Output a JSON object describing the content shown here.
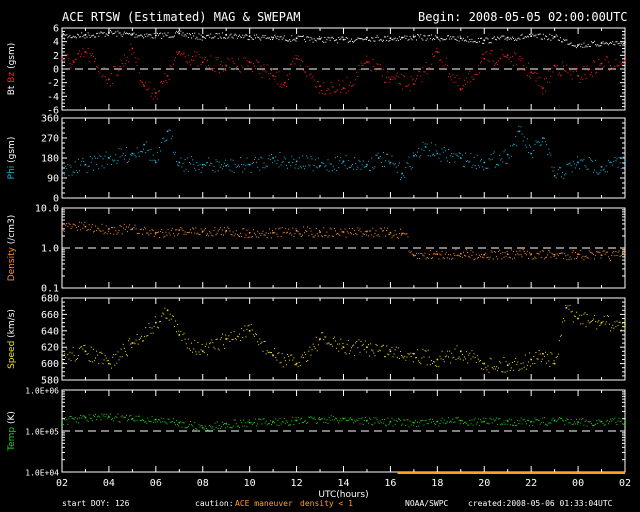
{
  "header": {
    "title": "ACE RTSW (Estimated) MAG & SWEPAM",
    "begin": "Begin: 2008-05-05 02:00:00UTC"
  },
  "footer": {
    "start_doy": "start DOY: 126",
    "caution_label": "caution:",
    "caution_maneuver": "ACE maneuver",
    "caution_density": "density < 1",
    "agency": "NOAA/SWPC",
    "created": "created:2008-05-06 01:33:04UTC"
  },
  "colors": {
    "bt": "#ffffff",
    "bz": "#ff2020",
    "phi": "#22b8e0",
    "density": "#ff9030",
    "speed": "#f0e020",
    "temp": "#20d020",
    "caution_maneuver": "#ffa020",
    "caution_density": "#ffa020"
  },
  "chart_data": [
    {
      "type": "scatter",
      "id": "mag",
      "ylabel": [
        {
          "text": "Bt",
          "color": "#ffffff"
        },
        {
          "text": " Bz",
          "color": "#ff2020"
        },
        {
          "text": " (gsm)",
          "color": "#ffffff"
        }
      ],
      "ylim": [
        -6,
        6
      ],
      "yticks": [
        "-6",
        "-4",
        "-2",
        "0",
        "2",
        "4",
        "6"
      ],
      "reference_line": 0,
      "series": [
        {
          "name": "Bt",
          "color": "#ffffff",
          "x": [
            2,
            3,
            4,
            5,
            6,
            7,
            8,
            9,
            10,
            11,
            12,
            13,
            14,
            15,
            16,
            16.5,
            17,
            18,
            19,
            20,
            21,
            22,
            23,
            24,
            25,
            26
          ],
          "y": [
            4.8,
            5.0,
            5.3,
            5.1,
            4.9,
            5.2,
            4.7,
            5.0,
            4.8,
            4.6,
            4.5,
            4.4,
            4.3,
            4.6,
            4.5,
            4.6,
            4.7,
            4.6,
            4.5,
            4.2,
            4.6,
            4.8,
            4.7,
            3.5,
            3.8,
            3.9
          ]
        },
        {
          "name": "Bz",
          "color": "#ff2020",
          "x": [
            2,
            2.5,
            3,
            4,
            5,
            5.5,
            6,
            6.5,
            7,
            8,
            9,
            10,
            11,
            11.5,
            12,
            13,
            14,
            15,
            16,
            17,
            18,
            19,
            20,
            21,
            22,
            22.5,
            23,
            24,
            25,
            26
          ],
          "y": [
            1.5,
            1.0,
            2.5,
            -1.5,
            3.0,
            -2.5,
            -3.5,
            -1.0,
            2.5,
            1.0,
            0.5,
            1.0,
            -1.0,
            -2.0,
            1.5,
            -2.5,
            -2.8,
            1.0,
            -1.5,
            -2.2,
            2.5,
            -3.0,
            1.5,
            2.0,
            -0.5,
            -2.8,
            0.5,
            -1.0,
            0.8,
            1.2
          ]
        }
      ]
    },
    {
      "type": "scatter",
      "id": "phi",
      "ylabel": [
        {
          "text": "Phi",
          "color": "#22b8e0"
        },
        {
          "text": " (gsm)",
          "color": "#ffffff"
        }
      ],
      "ylim": [
        0,
        360
      ],
      "yticks": [
        "0",
        "90",
        "180",
        "270",
        "360"
      ],
      "series": [
        {
          "name": "Phi",
          "color": "#22b8e0",
          "x": [
            2,
            3,
            4,
            5,
            5.5,
            6,
            6.5,
            7,
            8,
            9,
            10,
            11,
            12,
            13,
            14,
            15,
            15.5,
            16,
            16.5,
            17,
            17.5,
            18,
            19,
            20,
            21,
            21.5,
            22,
            22.5,
            23,
            24,
            25,
            26
          ],
          "y": [
            120,
            150,
            180,
            200,
            240,
            160,
            300,
            160,
            150,
            145,
            150,
            180,
            165,
            145,
            165,
            150,
            180,
            160,
            110,
            190,
            230,
            200,
            180,
            160,
            195,
            300,
            200,
            270,
            100,
            160,
            140,
            165
          ]
        }
      ]
    },
    {
      "type": "scatter",
      "id": "density",
      "ylabel": [
        {
          "text": "Density",
          "color": "#ff9030"
        },
        {
          "text": " (/cm3)",
          "color": "#ffffff"
        }
      ],
      "yscale": "log",
      "ylim": [
        0.1,
        10
      ],
      "yticks": [
        "0.1",
        "1.0",
        "10.0"
      ],
      "reference_line": 1,
      "series": [
        {
          "name": "Density",
          "color": "#ff9030",
          "x": [
            2,
            3,
            4,
            5,
            6,
            7,
            8,
            9,
            10,
            11,
            12,
            13,
            14,
            15,
            16,
            16.5,
            17,
            18,
            19,
            20,
            21,
            22,
            23,
            24,
            25,
            26
          ],
          "y": [
            3.5,
            3.4,
            3.0,
            3.0,
            2.4,
            2.8,
            2.6,
            2.7,
            2.4,
            2.4,
            2.7,
            2.5,
            2.5,
            2.6,
            2.4,
            2.3,
            0.65,
            0.7,
            0.72,
            0.68,
            0.7,
            0.7,
            0.68,
            0.7,
            0.66,
            0.66
          ]
        }
      ]
    },
    {
      "type": "scatter",
      "id": "speed",
      "ylabel": [
        {
          "text": "Speed",
          "color": "#f0e020"
        },
        {
          "text": " (km/s)",
          "color": "#ffffff"
        }
      ],
      "ylim": [
        580,
        680
      ],
      "yticks": [
        "580",
        "600",
        "620",
        "640",
        "660",
        "680"
      ],
      "series": [
        {
          "name": "Speed",
          "color": "#f0e020",
          "x": [
            2,
            3,
            4,
            5,
            6,
            6.5,
            7,
            8,
            9,
            10,
            11,
            12,
            13,
            14,
            15,
            16,
            17,
            18,
            19,
            20,
            21,
            22,
            22.5,
            23,
            23.5,
            24,
            25,
            26
          ],
          "y": [
            610,
            615,
            600,
            625,
            650,
            665,
            635,
            615,
            630,
            640,
            610,
            600,
            630,
            620,
            620,
            615,
            612,
            605,
            615,
            600,
            598,
            605,
            612,
            600,
            668,
            655,
            650,
            648
          ]
        }
      ]
    },
    {
      "type": "scatter",
      "id": "temp",
      "ylabel": [
        {
          "text": "Temp",
          "color": "#20d020"
        },
        {
          "text": " (K)",
          "color": "#ffffff"
        }
      ],
      "yscale": "log",
      "ylim": [
        10000,
        1000000
      ],
      "yticks": [
        "1.0E+04",
        "1.0E+05",
        "1.0E+06"
      ],
      "reference_line": 100000,
      "series": [
        {
          "name": "Temp",
          "color": "#20d020",
          "x": [
            2,
            3,
            4,
            5,
            6,
            7,
            8,
            9,
            10,
            11,
            12,
            13,
            14,
            15,
            16,
            17,
            18,
            19,
            20,
            21,
            22,
            23,
            24,
            25,
            26
          ],
          "y": [
            180000,
            210000,
            220000,
            200000,
            190000,
            160000,
            120000,
            150000,
            160000,
            170000,
            180000,
            190000,
            200000,
            180000,
            170000,
            160000,
            170000,
            180000,
            170000,
            175000,
            170000,
            180000,
            165000,
            170000,
            175000
          ]
        }
      ]
    }
  ],
  "xaxis": {
    "label": "UTC(hours)",
    "ticks": [
      "02",
      "04",
      "06",
      "08",
      "10",
      "12",
      "14",
      "16",
      "18",
      "20",
      "22",
      "00",
      "02"
    ],
    "range": [
      2,
      26
    ],
    "caution_bar": [
      16.3,
      26
    ]
  }
}
